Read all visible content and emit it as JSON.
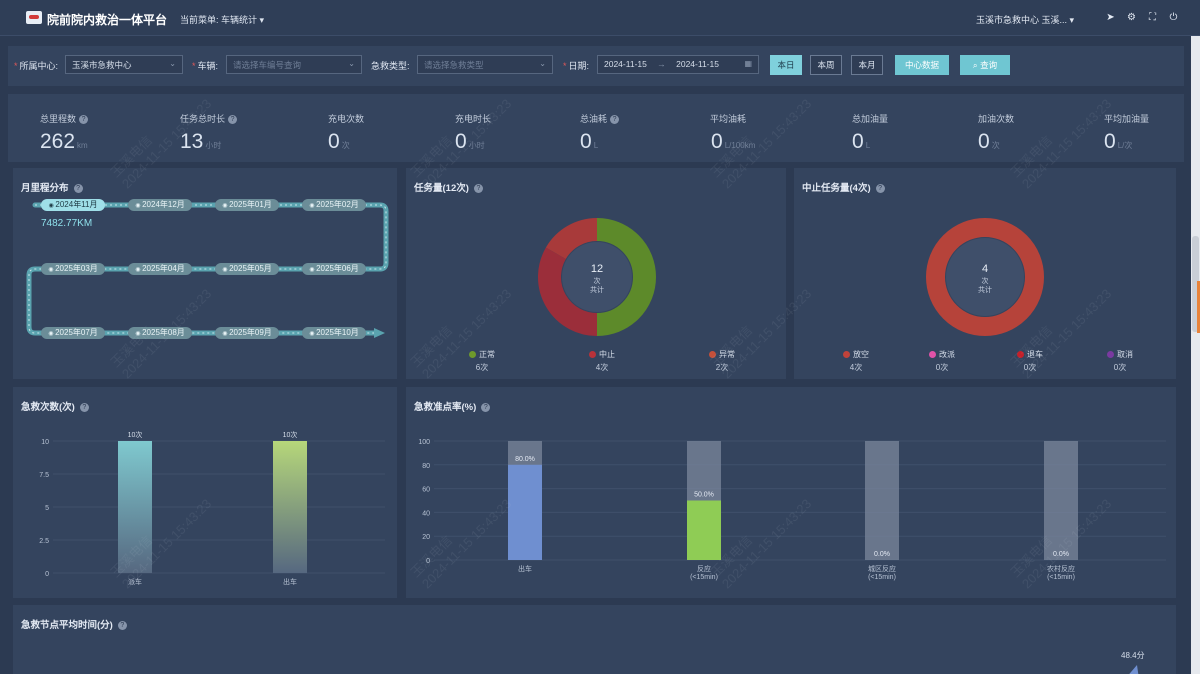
{
  "header": {
    "app_title": "院前院内救治一体平台",
    "menu_label": "当前菜单: 车辆统计",
    "user_text": "玉溪市急救中心  玉溪..."
  },
  "filters": {
    "center_label": "所属中心:",
    "center_value": "玉溪市急救中心",
    "vehicle_label": "车辆:",
    "vehicle_placeholder": "请选择车编号查询",
    "type_label": "急救类型:",
    "type_placeholder": "请选择急救类型",
    "date_label": "日期:",
    "date_start": "2024-11-15",
    "date_sep": "→",
    "date_end": "2024-11-15",
    "btn_today": "本日",
    "btn_week": "本周",
    "btn_month": "本月",
    "btn_center": "中心数据",
    "btn_query": "查询"
  },
  "stats": [
    {
      "label": "总里程数",
      "help": true,
      "value": "262",
      "unit": "km"
    },
    {
      "label": "任务总时长",
      "help": true,
      "value": "13",
      "unit": "小时"
    },
    {
      "label": "充电次数",
      "help": false,
      "value": "0",
      "unit": "次"
    },
    {
      "label": "充电时长",
      "help": false,
      "value": "0",
      "unit": "小时"
    },
    {
      "label": "总油耗",
      "help": true,
      "value": "0",
      "unit": "L"
    },
    {
      "label": "平均油耗",
      "help": false,
      "value": "0",
      "unit": "L/100km"
    },
    {
      "label": "总加油量",
      "help": false,
      "value": "0",
      "unit": "L"
    },
    {
      "label": "加油次数",
      "help": false,
      "value": "0",
      "unit": "次"
    },
    {
      "label": "平均加油量",
      "help": false,
      "value": "0",
      "unit": "L/次"
    }
  ],
  "mileage": {
    "title": "月里程分布",
    "months": [
      "2024年11月",
      "2024年12月",
      "2025年01月",
      "2025年02月",
      "2025年03月",
      "2025年04月",
      "2025年05月",
      "2025年06月",
      "2025年07月",
      "2025年08月",
      "2025年09月",
      "2025年10月"
    ],
    "active_value": "7482.77KM"
  },
  "tasks": {
    "title": "任务量(12次)",
    "center_value": "12",
    "center_unit": "次",
    "center_label": "共计",
    "legend": [
      {
        "name": "正常",
        "count": "6次",
        "color": "#6e9a2c"
      },
      {
        "name": "中止",
        "count": "4次",
        "color": "#b8323a"
      },
      {
        "name": "异常",
        "count": "2次",
        "color": "#c4503a"
      }
    ],
    "slices": [
      {
        "name": "正常",
        "value": 6,
        "color": "#5d8a2a"
      },
      {
        "name": "中止",
        "value": 4,
        "color": "#9b2e3a"
      },
      {
        "name": "异常",
        "value": 2,
        "color": "#a83a3a"
      }
    ]
  },
  "aborted": {
    "title": "中止任务量(4次)",
    "center_value": "4",
    "center_unit": "次",
    "center_label": "共计",
    "legend": [
      {
        "name": "放空",
        "count": "4次",
        "color": "#c0423a"
      },
      {
        "name": "改派",
        "count": "0次",
        "color": "#e052a8"
      },
      {
        "name": "退车",
        "count": "0次",
        "color": "#c4202a"
      },
      {
        "name": "取消",
        "count": "0次",
        "color": "#7a3aa0"
      }
    ],
    "slices": [
      {
        "name": "放空",
        "value": 4,
        "color": "#b6433a"
      }
    ]
  },
  "chart_data": [
    {
      "type": "bar",
      "title": "急救次数(次)",
      "categories": [
        "派车",
        "出车"
      ],
      "values": [
        10,
        10
      ],
      "data_labels": [
        "10次",
        "10次"
      ],
      "yticks": [
        "10",
        "7.5",
        "5",
        "2.5",
        "0"
      ],
      "ylim": [
        0,
        10
      ],
      "colors": [
        "#7fc9cf",
        "#b6d77a"
      ]
    },
    {
      "type": "bar",
      "title": "急救准点率(%)",
      "categories": [
        "出车",
        "反应(<15min)",
        "城区反应(<15min)",
        "农村反应(<15min)"
      ],
      "category_lines": [
        [
          "出车"
        ],
        [
          "反应",
          "(<15min)"
        ],
        [
          "城区反应",
          "(<15min)"
        ],
        [
          "农村反应",
          "(<15min)"
        ]
      ],
      "values": [
        80.0,
        50.0,
        0.0,
        0.0
      ],
      "data_labels": [
        "80.0%",
        "50.0%",
        "0.0%",
        "0.0%"
      ],
      "yticks": [
        "100",
        "80",
        "60",
        "40",
        "20",
        "0"
      ],
      "ylim": [
        0,
        100
      ],
      "colors": [
        "#6f8fd0",
        "#8fcc55",
        "#6f8fd0",
        "#6f8fd0"
      ],
      "bg_color": "#7b879c"
    },
    {
      "type": "line",
      "title": "急救节点平均时间(分)",
      "visible_label": "48.4分"
    }
  ],
  "watermark": {
    "company": "玉溪电信",
    "time": "2024-11-15 15:43:23"
  }
}
